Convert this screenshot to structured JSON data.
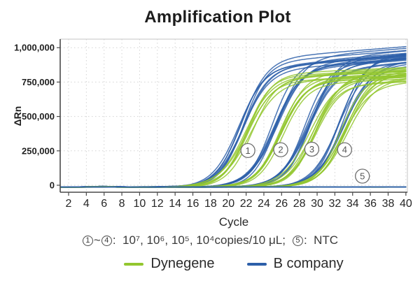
{
  "chart_data": {
    "type": "line",
    "title": "Amplification Plot",
    "xlabel": "Cycle",
    "ylabel": "ΔRn",
    "x_ticks": [
      2,
      4,
      6,
      8,
      10,
      12,
      14,
      16,
      18,
      20,
      22,
      24,
      26,
      28,
      30,
      32,
      34,
      36,
      38,
      40
    ],
    "y_ticks": [
      {
        "value": 0,
        "label": "0"
      },
      {
        "value": 250000,
        "label": "250,000"
      },
      {
        "value": 500000,
        "label": "500,000"
      },
      {
        "value": 750000,
        "label": "750,000"
      },
      {
        "value": 1000000,
        "label": "1,000,000"
      }
    ],
    "xlim": [
      1,
      40.2
    ],
    "ylim": [
      -50000,
      1062000
    ],
    "grid": "dotted",
    "legend_position": "bottom",
    "baseline_value": -13000,
    "rise_width_cycles": 1.45,
    "ntc_replicates_per_series": 4,
    "series": [
      {
        "name": "Dynegene",
        "color": "#93c72f",
        "group_cts": [
          22.3,
          26.0,
          29.4,
          33.0
        ],
        "plateau": 778000,
        "plateau_spread": 52000,
        "plateau_creep": 3000,
        "plateau_cap": 880000,
        "replicates_per_group": 7
      },
      {
        "name": "B company",
        "color": "#2d5fa9",
        "group_cts": [
          21.4,
          25.3,
          28.9,
          32.6
        ],
        "plateau": 888000,
        "plateau_spread": 52000,
        "plateau_creep": 5200,
        "plateau_cap": 1030000,
        "replicates_per_group": 7
      }
    ],
    "dilution_groups": [
      {
        "label": "1",
        "copies": "10⁷ copies/10 μL"
      },
      {
        "label": "2",
        "copies": "10⁶ copies/10 μL"
      },
      {
        "label": "3",
        "copies": "10⁵ copies/10 μL"
      },
      {
        "label": "4",
        "copies": "10⁴ copies/10 μL"
      },
      {
        "label": "5",
        "copies": "NTC"
      }
    ],
    "annotations": [
      {
        "label": "1",
        "cycle": 22.2,
        "value": 252000
      },
      {
        "label": "2",
        "cycle": 25.9,
        "value": 258000
      },
      {
        "label": "3",
        "cycle": 29.4,
        "value": 262000
      },
      {
        "label": "4",
        "cycle": 33.1,
        "value": 258000
      },
      {
        "label": "5",
        "cycle": 35.1,
        "value": 66000
      }
    ]
  },
  "footnote": {
    "text": "①~④：10⁷、10⁶、10⁵、10⁴copies/10 μL; ⑤：NTC",
    "start_num": "1",
    "tilde": "~",
    "end_num": "4",
    "list_text": ":  10⁷, 10⁶, 10⁵, 10⁴copies/10 μL;",
    "ntc_num": "5",
    "ntc_text": ":  NTC"
  },
  "legend": {
    "items": [
      {
        "label": "Dynegene"
      },
      {
        "label": "B company"
      }
    ]
  }
}
